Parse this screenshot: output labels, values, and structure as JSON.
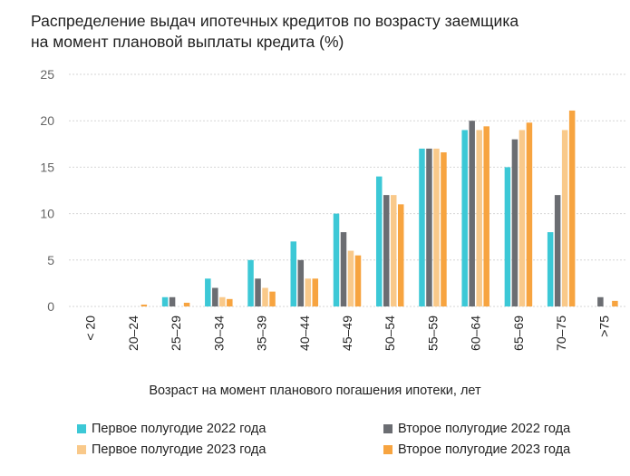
{
  "chart_data": {
    "type": "bar",
    "title_lines": [
      "Распределение выдач ипотечных кредитов по возрасту заемщика",
      "на момент плановой выплаты кредита (%)"
    ],
    "xlabel": "Возраст на момент планового погашения ипотеки, лет",
    "ylabel": "",
    "ylim": [
      0,
      25
    ],
    "yticks": [
      "0",
      "5",
      "10",
      "15",
      "20",
      "25"
    ],
    "grid": true,
    "legend_position": "bottom",
    "categories": [
      "< 20",
      "20–24",
      "25–29",
      "30–34",
      "35–39",
      "40–44",
      "45–49",
      "50–54",
      "55–59",
      "60–64",
      "65–69",
      "70–75",
      ">75"
    ],
    "series": [
      {
        "name": "Первое полугодие 2022 года",
        "color": "#3cc8d6",
        "values": [
          0,
          0,
          1,
          3,
          5,
          7,
          10,
          14,
          17,
          19,
          15,
          8,
          0
        ]
      },
      {
        "name": "Второе полугодие 2022 года",
        "color": "#6b6d72",
        "values": [
          0,
          0,
          1,
          2,
          3,
          5,
          8,
          12,
          17,
          20,
          18,
          12,
          1
        ]
      },
      {
        "name": "Первое полугодие 2023 года",
        "color": "#f9c98a",
        "values": [
          0,
          0,
          0,
          1,
          2,
          3,
          6,
          12,
          17,
          19,
          19,
          19,
          0
        ]
      },
      {
        "name": "Второе полугодие 2023 года",
        "color": "#f7a440",
        "values": [
          0,
          0.2,
          0.4,
          0.8,
          1.6,
          3,
          5.5,
          11,
          16.6,
          19.4,
          19.8,
          21.1,
          0.6
        ]
      }
    ]
  }
}
